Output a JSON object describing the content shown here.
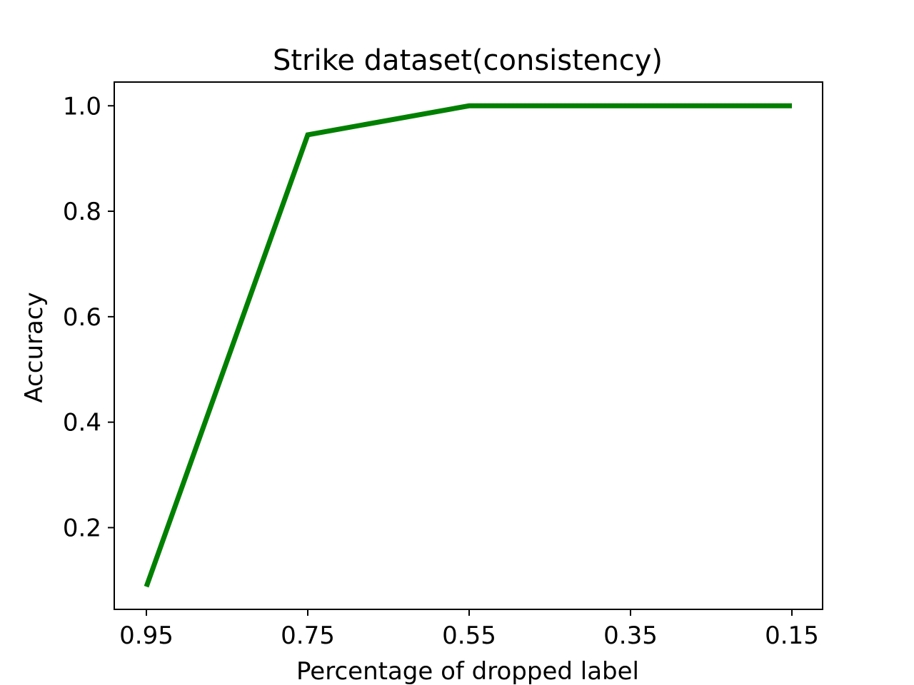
{
  "chart_data": {
    "type": "line",
    "title": "Strike dataset(consistency)",
    "xlabel": "Percentage of dropped label",
    "ylabel": "Accuracy",
    "x": [
      "0.95",
      "0.75",
      "0.55",
      "0.35",
      "0.15"
    ],
    "series": [
      {
        "values": [
          0.088,
          0.945,
          1.0,
          1.0,
          1.0
        ],
        "color": "#008000"
      }
    ],
    "y_ticks": [
      "0.2",
      "0.4",
      "0.6",
      "0.8",
      "1.0"
    ],
    "ylim": [
      0.045,
      1.045
    ],
    "grid": false
  }
}
